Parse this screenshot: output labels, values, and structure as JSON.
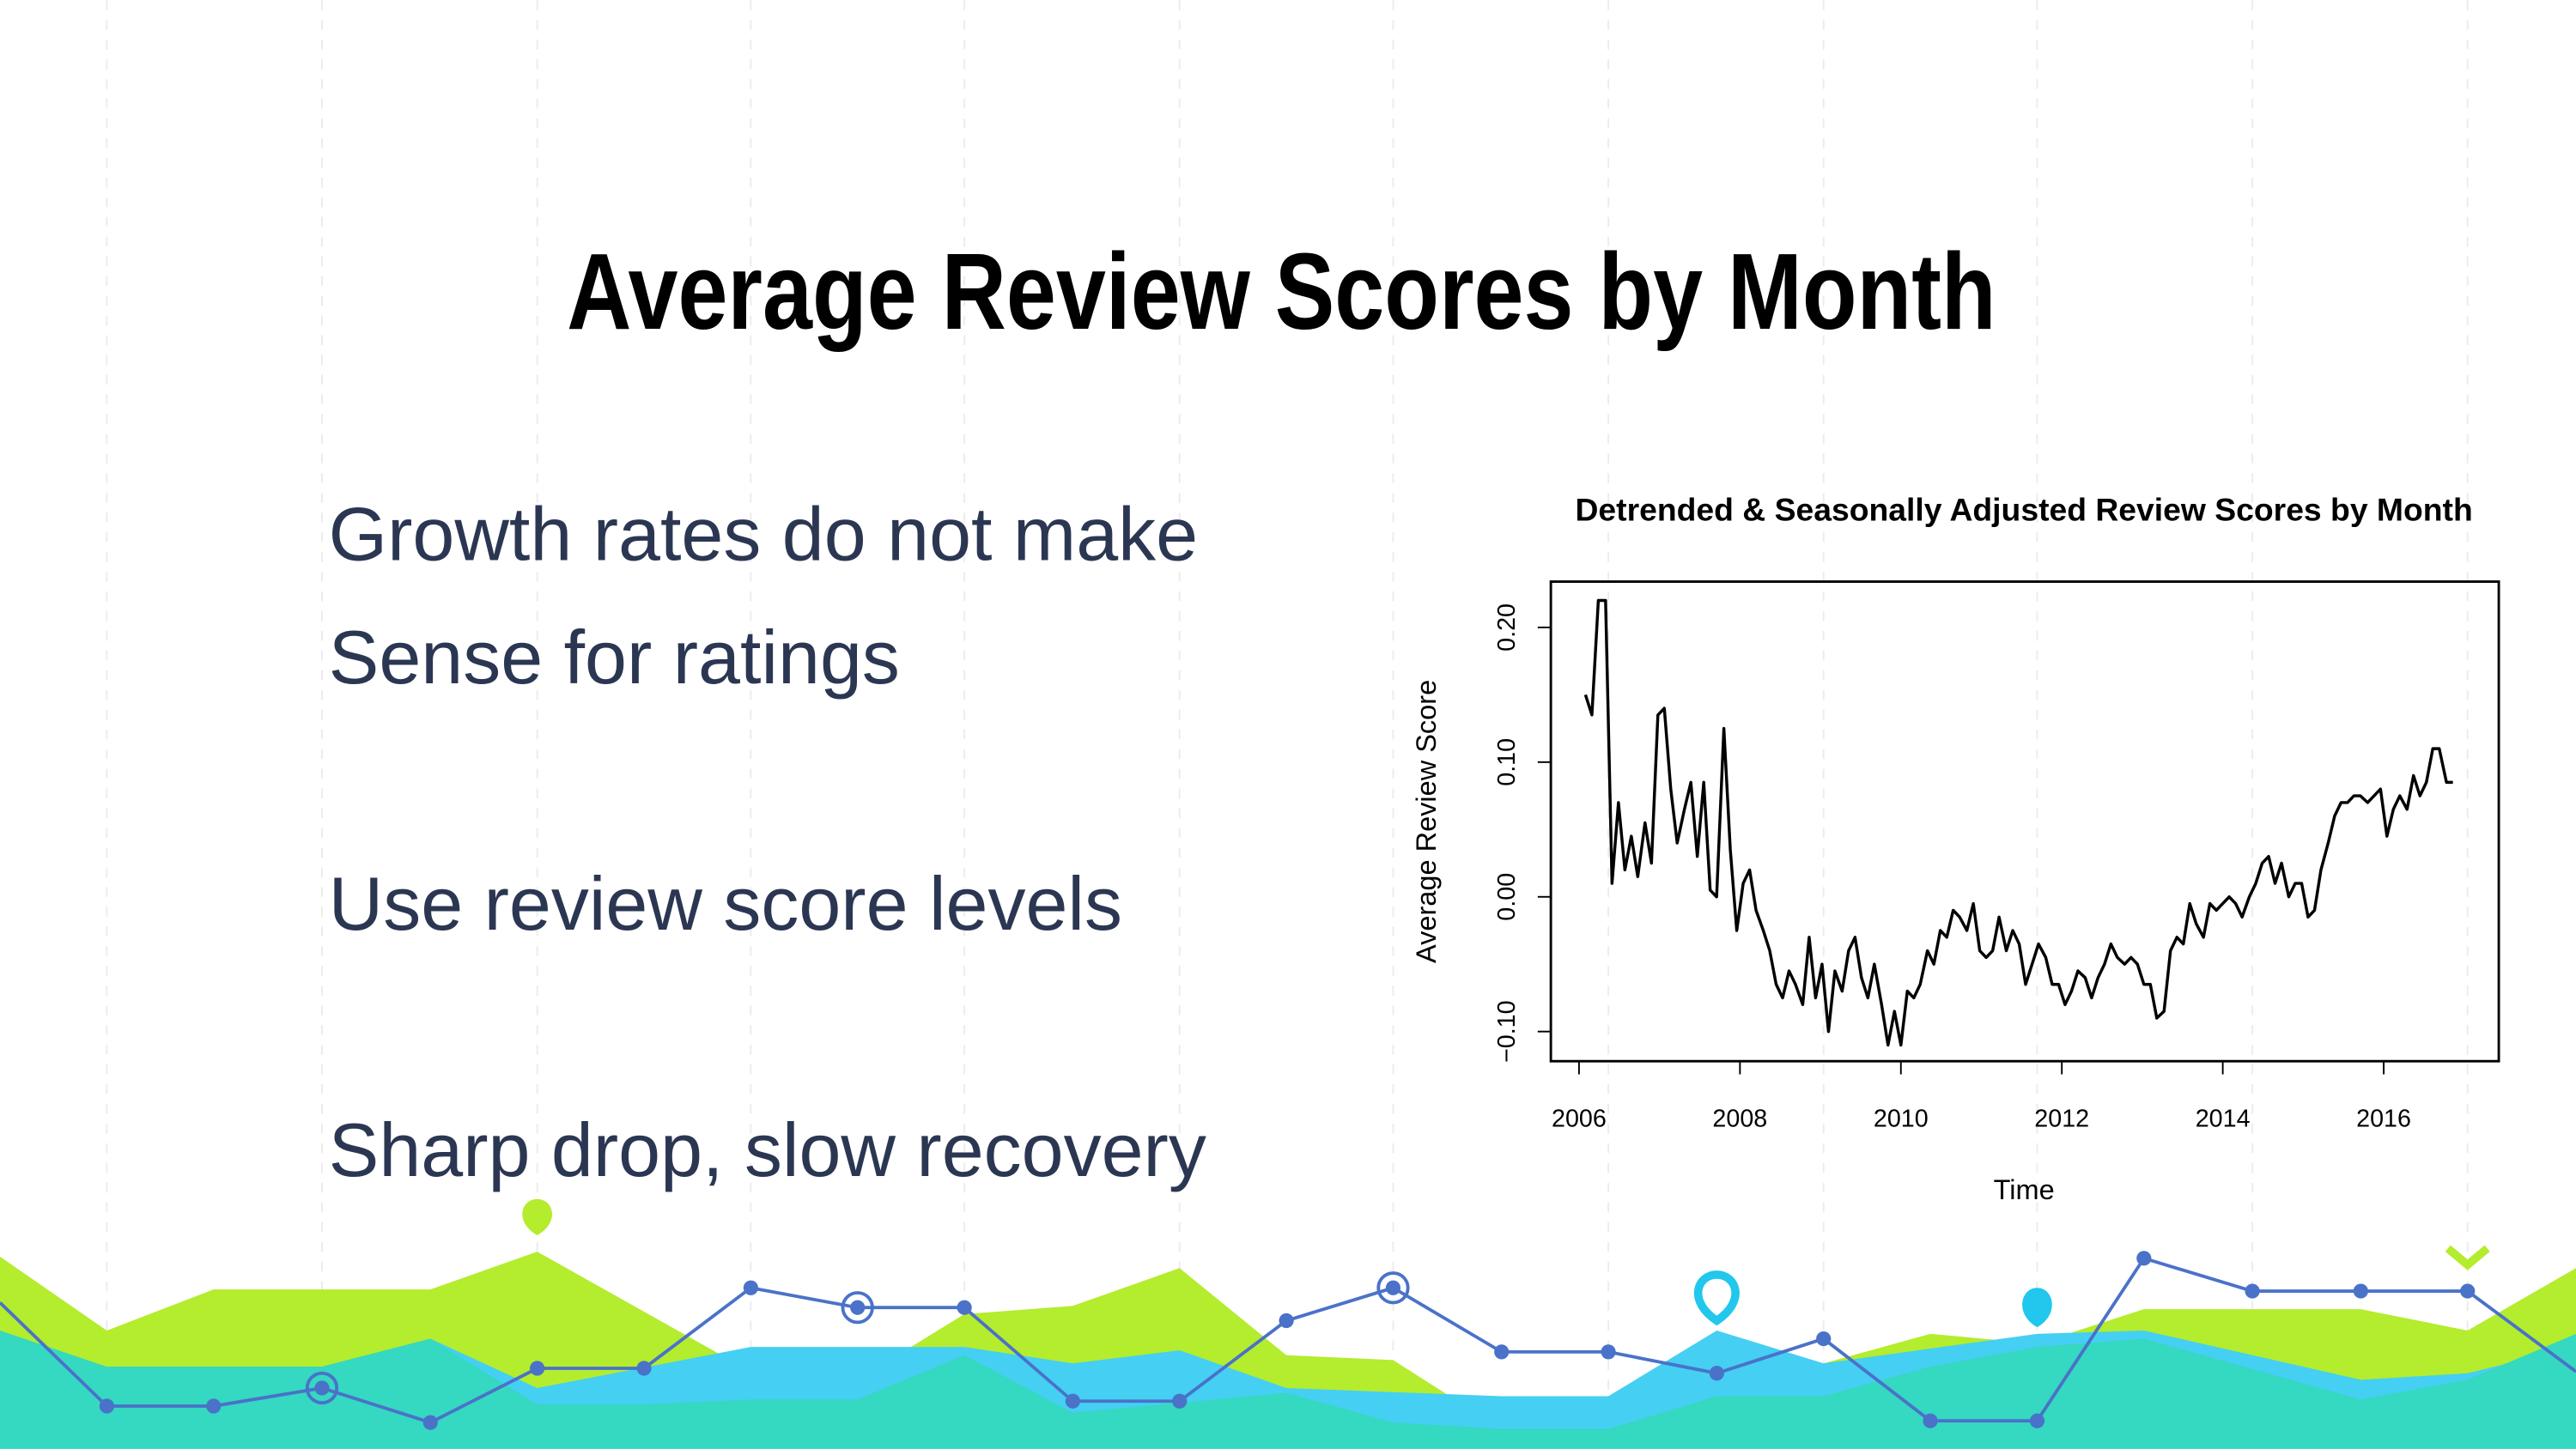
{
  "title": "Average Review Scores by Month",
  "bullets": [
    "Growth rates do not make",
    "Sense for ratings",
    "Use review score levels",
    "Sharp drop, slow recovery"
  ],
  "chart_data": {
    "type": "line",
    "title": "Detrended & Seasonally Adjusted Review Scores by Month",
    "x_label": "Time",
    "y_label": "Average Review Score",
    "color": "#000000",
    "x": [
      2006.08,
      2006.16,
      2006.24,
      2006.33,
      2006.41,
      2006.49,
      2006.57,
      2006.65,
      2006.73,
      2006.82,
      2006.9,
      2006.98,
      2007.06,
      2007.14,
      2007.22,
      2007.31,
      2007.39,
      2007.47,
      2007.55,
      2007.63,
      2007.71,
      2007.8,
      2007.88,
      2007.96,
      2008.04,
      2008.12,
      2008.2,
      2008.29,
      2008.37,
      2008.45,
      2008.53,
      2008.61,
      2008.69,
      2008.78,
      2008.86,
      2008.94,
      2009.02,
      2009.1,
      2009.18,
      2009.27,
      2009.35,
      2009.43,
      2009.51,
      2009.59,
      2009.67,
      2009.76,
      2009.84,
      2009.92,
      2010.0,
      2010.08,
      2010.16,
      2010.24,
      2010.33,
      2010.41,
      2010.49,
      2010.57,
      2010.65,
      2010.73,
      2010.82,
      2010.9,
      2010.98,
      2011.06,
      2011.14,
      2011.22,
      2011.31,
      2011.39,
      2011.47,
      2011.55,
      2011.63,
      2011.71,
      2011.8,
      2011.88,
      2011.96,
      2012.04,
      2012.12,
      2012.2,
      2012.29,
      2012.37,
      2012.45,
      2012.53,
      2012.61,
      2012.69,
      2012.78,
      2012.86,
      2012.94,
      2013.02,
      2013.1,
      2013.18,
      2013.27,
      2013.35,
      2013.43,
      2013.51,
      2013.59,
      2013.67,
      2013.76,
      2013.84,
      2013.92,
      2014.0,
      2014.08,
      2014.16,
      2014.24,
      2014.33,
      2014.41,
      2014.49,
      2014.57,
      2014.65,
      2014.73,
      2014.82,
      2014.9,
      2014.98,
      2015.06,
      2015.14,
      2015.22,
      2015.31,
      2015.39,
      2015.47,
      2015.55,
      2015.63,
      2015.71,
      2015.8,
      2015.88,
      2015.96,
      2016.04,
      2016.12,
      2016.2,
      2016.29,
      2016.37,
      2016.45,
      2016.53,
      2016.61,
      2016.69,
      2016.78,
      2016.86
    ],
    "values": [
      0.15,
      0.135,
      0.22,
      0.22,
      0.01,
      0.07,
      0.02,
      0.045,
      0.015,
      0.055,
      0.025,
      0.135,
      0.14,
      0.08,
      0.04,
      0.065,
      0.085,
      0.03,
      0.085,
      0.005,
      0.0,
      0.125,
      0.035,
      -0.025,
      0.01,
      0.02,
      -0.01,
      -0.025,
      -0.04,
      -0.065,
      -0.075,
      -0.055,
      -0.065,
      -0.08,
      -0.03,
      -0.075,
      -0.05,
      -0.1,
      -0.055,
      -0.07,
      -0.04,
      -0.03,
      -0.06,
      -0.075,
      -0.05,
      -0.08,
      -0.11,
      -0.085,
      -0.11,
      -0.07,
      -0.075,
      -0.065,
      -0.04,
      -0.05,
      -0.025,
      -0.03,
      -0.01,
      -0.015,
      -0.025,
      -0.005,
      -0.04,
      -0.045,
      -0.04,
      -0.015,
      -0.04,
      -0.025,
      -0.035,
      -0.065,
      -0.05,
      -0.035,
      -0.045,
      -0.065,
      -0.065,
      -0.08,
      -0.07,
      -0.055,
      -0.06,
      -0.075,
      -0.06,
      -0.05,
      -0.035,
      -0.045,
      -0.05,
      -0.045,
      -0.05,
      -0.065,
      -0.065,
      -0.09,
      -0.085,
      -0.04,
      -0.03,
      -0.035,
      -0.005,
      -0.02,
      -0.03,
      -0.005,
      -0.01,
      -0.005,
      0.0,
      -0.005,
      -0.015,
      0.0,
      0.01,
      0.025,
      0.03,
      0.01,
      0.025,
      0.0,
      0.01,
      0.01,
      -0.015,
      -0.01,
      0.02,
      0.04,
      0.06,
      0.07,
      0.07,
      0.075,
      0.075,
      0.07,
      0.075,
      0.08,
      0.045,
      0.065,
      0.075,
      0.065,
      0.09,
      0.075,
      0.085,
      0.11,
      0.11,
      0.085,
      0.085
    ],
    "xlim": [
      2005.65,
      2017.43
    ],
    "ylim": [
      -0.122,
      0.234
    ],
    "xticks": [
      2006,
      2008,
      2010,
      2012,
      2014,
      2016
    ],
    "yticks": [
      {
        "value": -0.1,
        "label": "−0.10"
      },
      {
        "value": 0,
        "label": "0.00"
      },
      {
        "value": 0.1,
        "label": "0.10"
      },
      {
        "value": 0.2,
        "label": "0.20"
      }
    ]
  }
}
